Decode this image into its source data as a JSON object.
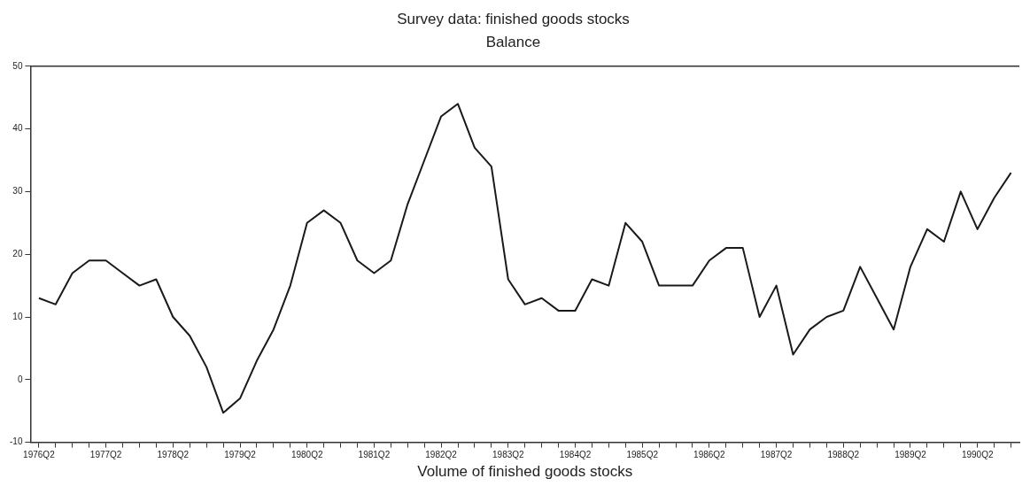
{
  "chart_data": {
    "type": "line",
    "title": "Survey data: finished goods stocks",
    "subtitle": "Balance",
    "xlabel": "Volume of finished goods stocks",
    "categories": [
      "1976Q2",
      null,
      null,
      null,
      "1977Q2",
      null,
      null,
      null,
      "1978Q2",
      null,
      null,
      null,
      "1979Q2",
      null,
      null,
      null,
      "1980Q2",
      null,
      null,
      null,
      "1981Q2",
      null,
      null,
      null,
      "1982Q2",
      null,
      null,
      null,
      "1983Q2",
      null,
      null,
      null,
      "1984Q2",
      null,
      null,
      null,
      "1985Q2",
      null,
      null,
      null,
      "1986Q2",
      null,
      null,
      null,
      "1987Q2",
      null,
      null,
      null,
      "1988Q2",
      null,
      null,
      null,
      "1989Q2",
      null,
      null,
      null,
      "1990Q2",
      null,
      null
    ],
    "series": [
      {
        "color": "#1a1a1a",
        "values": [
          13,
          12,
          17,
          19,
          19,
          17,
          15,
          16,
          10,
          7,
          2,
          -5.3,
          -3,
          3,
          8,
          15,
          25,
          27,
          25,
          19,
          17,
          19,
          28,
          35,
          42,
          44,
          37,
          34,
          16,
          12,
          13,
          11,
          11,
          16,
          15,
          25,
          22,
          15,
          15,
          15,
          19,
          21,
          21,
          10,
          15,
          4,
          8,
          10,
          11,
          18,
          13,
          8,
          18,
          24,
          22,
          30,
          24,
          29,
          33
        ]
      }
    ],
    "ylim": [
      -10,
      50
    ],
    "yticks": [
      -10,
      0,
      10,
      20,
      30,
      40,
      50
    ],
    "grid": false,
    "legend": false,
    "marker": "none",
    "line_style": "solid"
  }
}
